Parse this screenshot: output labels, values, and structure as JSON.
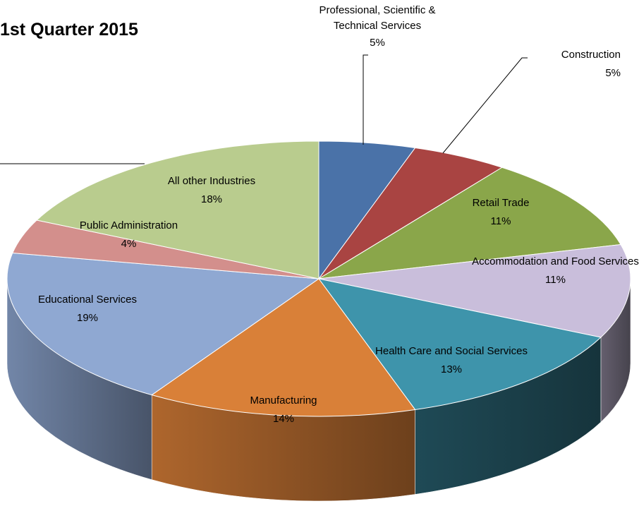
{
  "chart_data": {
    "type": "pie",
    "title": "1st Quarter 2015",
    "categories": [
      "Professional, Scientific & Technical Services",
      "Construction",
      "Retail Trade",
      "Accommodation and Food Services",
      "Health Care and Social Services",
      "Manufacturing",
      "Educational Services",
      "Public Administration",
      "All other Industries"
    ],
    "values": [
      5,
      5,
      11,
      11,
      13,
      14,
      19,
      4,
      18
    ],
    "value_labels": [
      "5%",
      "5%",
      "11%",
      "11%",
      "13%",
      "14%",
      "19%",
      "4%",
      "18%"
    ],
    "colors": [
      "#4a72a8",
      "#a94442",
      "#8aa64a",
      "#c9bedb",
      "#3e94ab",
      "#d98038",
      "#8fa8d2",
      "#d38f8c",
      "#b9cc8e"
    ]
  }
}
